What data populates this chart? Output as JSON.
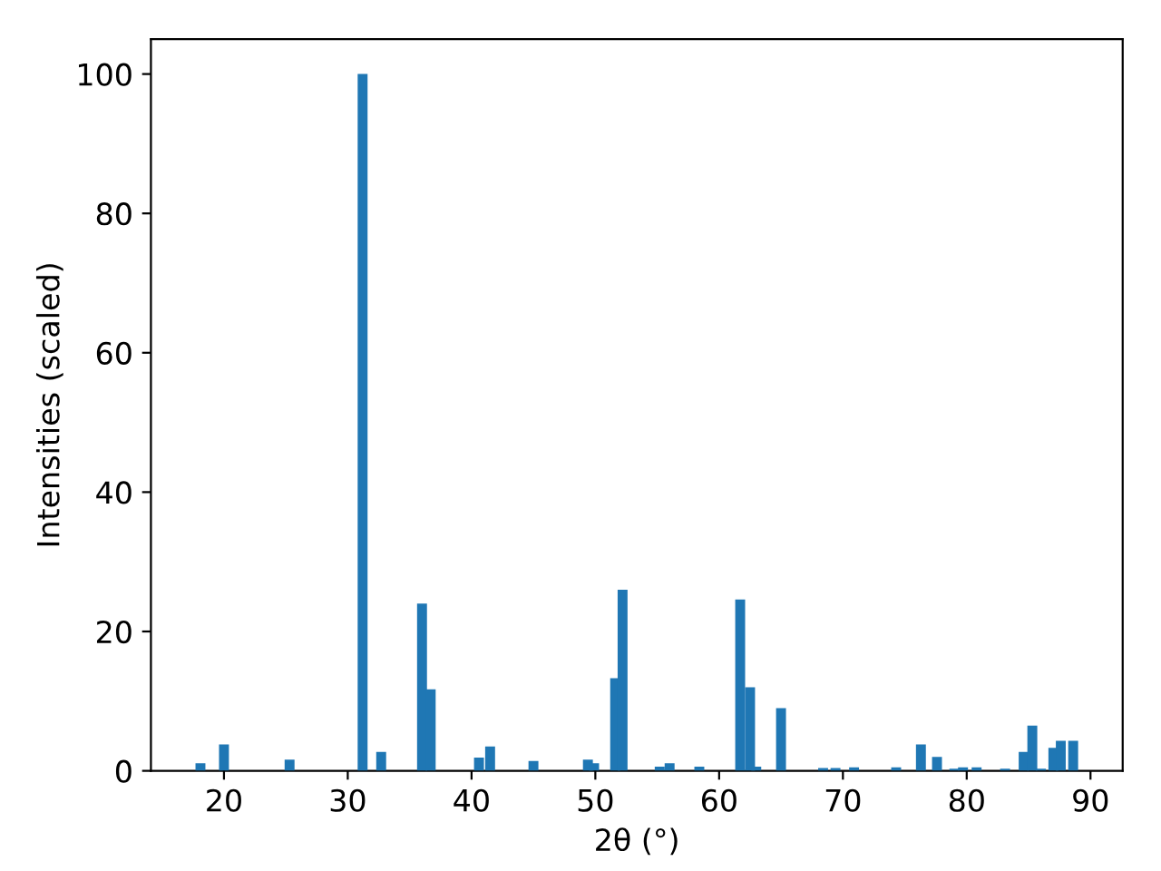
{
  "chart_data": {
    "type": "bar",
    "xlabel": "2θ (°)",
    "ylabel": "Intensities (scaled)",
    "x": [
      18.1,
      20.0,
      25.3,
      31.2,
      32.7,
      36.0,
      36.7,
      40.6,
      41.5,
      45.0,
      49.4,
      49.9,
      51.6,
      52.2,
      55.2,
      56.0,
      58.4,
      61.7,
      62.5,
      63.0,
      65.0,
      68.4,
      69.4,
      70.9,
      74.3,
      76.3,
      77.6,
      79.0,
      79.7,
      80.8,
      83.1,
      84.6,
      85.3,
      86.0,
      87.0,
      87.6,
      88.6
    ],
    "values": [
      1.1,
      3.8,
      1.6,
      100,
      2.7,
      24,
      11.7,
      1.9,
      3.5,
      1.4,
      1.6,
      1.1,
      13.3,
      26,
      0.6,
      1.1,
      0.6,
      24.6,
      12,
      0.6,
      9,
      0.4,
      0.4,
      0.5,
      0.5,
      3.8,
      2,
      0.3,
      0.5,
      0.5,
      0.3,
      2.7,
      6.5,
      0.3,
      3.3,
      4.3,
      4.3
    ],
    "color": "#1f77b4",
    "xlim": [
      14.1,
      92.6
    ],
    "xticks": [
      20,
      30,
      40,
      50,
      60,
      70,
      80,
      90
    ],
    "ylim": [
      0,
      105
    ],
    "yticks": [
      0,
      20,
      40,
      60,
      80,
      100
    ],
    "grid": false
  }
}
